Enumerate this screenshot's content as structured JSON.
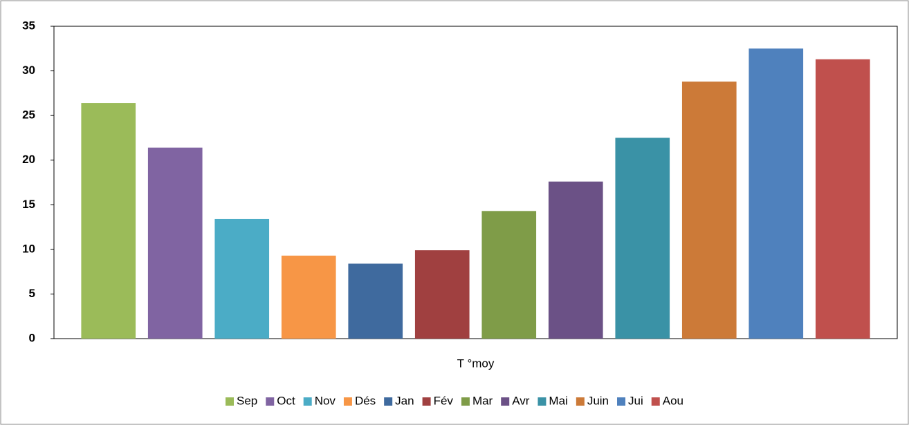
{
  "chart_data": {
    "type": "bar",
    "categories": [
      "T °moy"
    ],
    "series": [
      {
        "name": "Sep",
        "color": "#9bbb59",
        "values": [
          26.4
        ]
      },
      {
        "name": "Oct",
        "color": "#8064a2",
        "values": [
          21.4
        ]
      },
      {
        "name": "Nov",
        "color": "#4bacc6",
        "values": [
          13.4
        ]
      },
      {
        "name": "Dés",
        "color": "#f79646",
        "values": [
          9.3
        ]
      },
      {
        "name": "Jan",
        "color": "#3f6a9e",
        "values": [
          8.4
        ]
      },
      {
        "name": "Fév",
        "color": "#a04040",
        "values": [
          9.9
        ]
      },
      {
        "name": "Mar",
        "color": "#7f9c48",
        "values": [
          14.3
        ]
      },
      {
        "name": "Avr",
        "color": "#6b5186",
        "values": [
          17.6
        ]
      },
      {
        "name": "Mai",
        "color": "#3a92a6",
        "values": [
          22.5
        ]
      },
      {
        "name": "Juin",
        "color": "#cc7a38",
        "values": [
          28.8
        ]
      },
      {
        "name": "Jui",
        "color": "#4f81bd",
        "values": [
          32.5
        ]
      },
      {
        "name": "Aou",
        "color": "#c0504d",
        "values": [
          31.3
        ]
      }
    ],
    "ylim": [
      0,
      35
    ],
    "yticks": [
      0,
      5,
      10,
      15,
      20,
      25,
      30,
      35
    ],
    "grid": false,
    "legend": "bottom"
  }
}
